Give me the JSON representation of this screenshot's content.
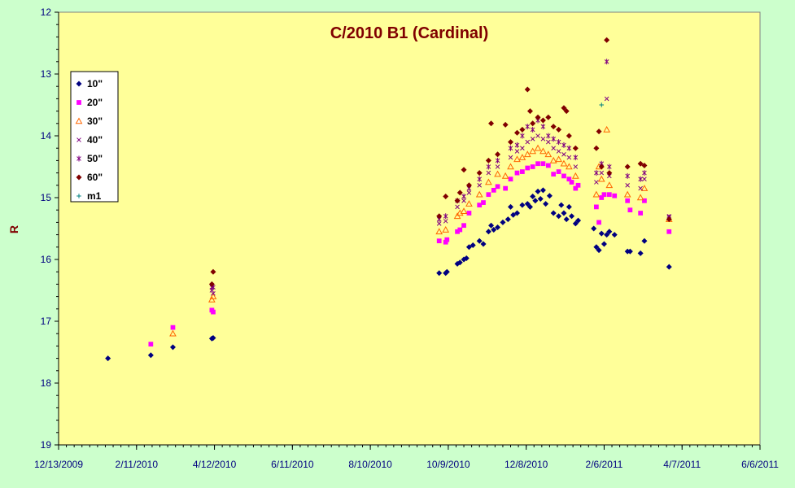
{
  "chart_data": {
    "type": "scatter",
    "title": "C/2010 B1 (Cardinal)",
    "xlabel": "",
    "ylabel": "R",
    "xlim": [
      "2009-12-13",
      "2011-06-06"
    ],
    "ylim": [
      12,
      19
    ],
    "y_inverted": true,
    "x_ticks": [
      "12/13/2009",
      "2/11/2010",
      "4/12/2010",
      "6/11/2010",
      "8/10/2010",
      "10/9/2010",
      "12/8/2010",
      "2/6/2011",
      "4/7/2011",
      "6/6/2011"
    ],
    "y_ticks": [
      12,
      13,
      14,
      15,
      16,
      17,
      18,
      19
    ],
    "grid": false,
    "legend_position": "left",
    "colors": {
      "plot_background": "#ffff99",
      "page_background": "#ccffcc",
      "title": "#800000",
      "axis_labels": "#000080"
    },
    "series": [
      {
        "name": "10\"",
        "marker": "diamond",
        "color": "#000080",
        "points": [
          [
            "2010-01-20",
            17.6
          ],
          [
            "2010-02-22",
            17.55
          ],
          [
            "2010-03-11",
            17.42
          ],
          [
            "2010-04-10",
            17.28
          ],
          [
            "2010-04-11",
            17.27
          ],
          [
            "2010-10-02",
            16.22
          ],
          [
            "2010-10-07",
            16.22
          ],
          [
            "2010-10-08",
            16.2
          ],
          [
            "2010-10-16",
            16.07
          ],
          [
            "2010-10-18",
            16.05
          ],
          [
            "2010-10-21",
            16.0
          ],
          [
            "2010-10-23",
            15.98
          ],
          [
            "2010-10-25",
            15.8
          ],
          [
            "2010-10-28",
            15.77
          ],
          [
            "2010-11-02",
            15.7
          ],
          [
            "2010-11-05",
            15.75
          ],
          [
            "2010-11-09",
            15.55
          ],
          [
            "2010-11-11",
            15.45
          ],
          [
            "2010-11-13",
            15.52
          ],
          [
            "2010-11-16",
            15.48
          ],
          [
            "2010-11-20",
            15.4
          ],
          [
            "2010-11-24",
            15.35
          ],
          [
            "2010-11-26",
            15.15
          ],
          [
            "2010-11-28",
            15.28
          ],
          [
            "2010-12-01",
            15.25
          ],
          [
            "2010-12-05",
            15.12
          ],
          [
            "2010-12-09",
            15.1
          ],
          [
            "2010-12-11",
            15.15
          ],
          [
            "2010-12-13",
            14.98
          ],
          [
            "2010-12-15",
            15.05
          ],
          [
            "2010-12-17",
            14.9
          ],
          [
            "2010-12-19",
            15.02
          ],
          [
            "2010-12-21",
            14.88
          ],
          [
            "2010-12-23",
            15.1
          ],
          [
            "2010-12-26",
            14.97
          ],
          [
            "2010-12-29",
            15.25
          ],
          [
            "2011-01-02",
            15.3
          ],
          [
            "2011-01-04",
            15.12
          ],
          [
            "2011-01-06",
            15.25
          ],
          [
            "2011-01-08",
            15.35
          ],
          [
            "2011-01-10",
            15.15
          ],
          [
            "2011-01-12",
            15.3
          ],
          [
            "2011-01-15",
            15.42
          ],
          [
            "2011-01-17",
            15.37
          ],
          [
            "2011-01-29",
            15.5
          ],
          [
            "2011-01-31",
            15.8
          ],
          [
            "2011-02-02",
            15.85
          ],
          [
            "2011-02-04",
            15.58
          ],
          [
            "2011-02-06",
            15.75
          ],
          [
            "2011-02-08",
            15.6
          ],
          [
            "2011-02-10",
            15.55
          ],
          [
            "2011-02-14",
            15.6
          ],
          [
            "2011-02-24",
            15.87
          ],
          [
            "2011-02-26",
            15.87
          ],
          [
            "2011-03-06",
            15.9
          ],
          [
            "2011-03-09",
            15.7
          ],
          [
            "2011-03-28",
            16.12
          ]
        ]
      },
      {
        "name": "20\"",
        "marker": "square",
        "color": "#ff00ff",
        "points": [
          [
            "2010-02-22",
            17.37
          ],
          [
            "2010-03-11",
            17.1
          ],
          [
            "2010-04-10",
            16.82
          ],
          [
            "2010-04-11",
            16.85
          ],
          [
            "2010-10-02",
            15.7
          ],
          [
            "2010-10-07",
            15.72
          ],
          [
            "2010-10-08",
            15.68
          ],
          [
            "2010-10-16",
            15.55
          ],
          [
            "2010-10-18",
            15.52
          ],
          [
            "2010-10-21",
            15.45
          ],
          [
            "2010-10-25",
            15.25
          ],
          [
            "2010-11-02",
            15.12
          ],
          [
            "2010-11-05",
            15.08
          ],
          [
            "2010-11-09",
            14.95
          ],
          [
            "2010-11-13",
            14.88
          ],
          [
            "2010-11-16",
            14.82
          ],
          [
            "2010-11-22",
            14.85
          ],
          [
            "2010-11-26",
            14.7
          ],
          [
            "2010-12-01",
            14.6
          ],
          [
            "2010-12-05",
            14.58
          ],
          [
            "2010-12-09",
            14.52
          ],
          [
            "2010-12-13",
            14.5
          ],
          [
            "2010-12-17",
            14.45
          ],
          [
            "2010-12-21",
            14.45
          ],
          [
            "2010-12-25",
            14.48
          ],
          [
            "2010-12-29",
            14.62
          ],
          [
            "2011-01-02",
            14.58
          ],
          [
            "2011-01-06",
            14.65
          ],
          [
            "2011-01-10",
            14.7
          ],
          [
            "2011-01-12",
            14.75
          ],
          [
            "2011-01-15",
            14.85
          ],
          [
            "2011-01-17",
            14.8
          ],
          [
            "2011-01-31",
            15.15
          ],
          [
            "2011-02-02",
            15.4
          ],
          [
            "2011-02-04",
            15.0
          ],
          [
            "2011-02-06",
            14.95
          ],
          [
            "2011-02-10",
            14.95
          ],
          [
            "2011-02-14",
            14.97
          ],
          [
            "2011-02-24",
            15.05
          ],
          [
            "2011-02-26",
            15.2
          ],
          [
            "2011-03-06",
            15.25
          ],
          [
            "2011-03-09",
            15.05
          ],
          [
            "2011-03-28",
            15.55
          ]
        ]
      },
      {
        "name": "30\"",
        "marker": "triangle",
        "color": "#ff6600",
        "points": [
          [
            "2010-03-11",
            17.2
          ],
          [
            "2010-04-10",
            16.65
          ],
          [
            "2010-04-11",
            16.6
          ],
          [
            "2010-10-02",
            15.55
          ],
          [
            "2010-10-07",
            15.52
          ],
          [
            "2010-10-16",
            15.3
          ],
          [
            "2010-10-18",
            15.25
          ],
          [
            "2010-10-21",
            15.22
          ],
          [
            "2010-10-25",
            15.1
          ],
          [
            "2010-11-02",
            14.95
          ],
          [
            "2010-11-09",
            14.75
          ],
          [
            "2010-11-16",
            14.62
          ],
          [
            "2010-11-22",
            14.65
          ],
          [
            "2010-11-26",
            14.5
          ],
          [
            "2010-12-01",
            14.38
          ],
          [
            "2010-12-05",
            14.35
          ],
          [
            "2010-12-09",
            14.3
          ],
          [
            "2010-12-13",
            14.25
          ],
          [
            "2010-12-17",
            14.2
          ],
          [
            "2010-12-21",
            14.25
          ],
          [
            "2010-12-25",
            14.3
          ],
          [
            "2010-12-29",
            14.4
          ],
          [
            "2011-01-02",
            14.38
          ],
          [
            "2011-01-06",
            14.45
          ],
          [
            "2011-01-10",
            14.5
          ],
          [
            "2011-01-15",
            14.65
          ],
          [
            "2011-01-31",
            14.95
          ],
          [
            "2011-02-02",
            14.5
          ],
          [
            "2011-02-04",
            14.7
          ],
          [
            "2011-02-08",
            13.9
          ],
          [
            "2011-02-10",
            14.8
          ],
          [
            "2011-02-24",
            14.95
          ],
          [
            "2011-03-06",
            15.0
          ],
          [
            "2011-03-09",
            14.85
          ],
          [
            "2011-03-28",
            15.35
          ]
        ]
      },
      {
        "name": "40\"",
        "marker": "x",
        "color": "#800080",
        "points": [
          [
            "2010-04-10",
            16.5
          ],
          [
            "2010-04-11",
            16.55
          ],
          [
            "2010-10-02",
            15.42
          ],
          [
            "2010-10-07",
            15.38
          ],
          [
            "2010-10-16",
            15.15
          ],
          [
            "2010-10-21",
            15.05
          ],
          [
            "2010-10-25",
            14.92
          ],
          [
            "2010-11-02",
            14.8
          ],
          [
            "2010-11-09",
            14.6
          ],
          [
            "2010-11-16",
            14.5
          ],
          [
            "2010-11-26",
            14.35
          ],
          [
            "2010-12-01",
            14.25
          ],
          [
            "2010-12-05",
            14.2
          ],
          [
            "2010-12-09",
            14.1
          ],
          [
            "2010-12-13",
            14.05
          ],
          [
            "2010-12-17",
            14.0
          ],
          [
            "2010-12-21",
            14.05
          ],
          [
            "2010-12-25",
            14.1
          ],
          [
            "2010-12-29",
            14.2
          ],
          [
            "2011-01-02",
            14.25
          ],
          [
            "2011-01-06",
            14.3
          ],
          [
            "2011-01-10",
            14.35
          ],
          [
            "2011-01-15",
            14.5
          ],
          [
            "2011-01-31",
            14.75
          ],
          [
            "2011-02-04",
            14.6
          ],
          [
            "2011-02-08",
            13.4
          ],
          [
            "2011-02-10",
            14.65
          ],
          [
            "2011-02-24",
            14.8
          ],
          [
            "2011-03-06",
            14.85
          ],
          [
            "2011-03-09",
            14.7
          ],
          [
            "2011-03-28",
            15.3
          ]
        ]
      },
      {
        "name": "50\"",
        "marker": "star",
        "color": "#800080",
        "points": [
          [
            "2010-04-10",
            16.45
          ],
          [
            "2010-04-11",
            16.45
          ],
          [
            "2010-10-02",
            15.35
          ],
          [
            "2010-10-07",
            15.3
          ],
          [
            "2010-10-16",
            15.05
          ],
          [
            "2010-10-21",
            14.98
          ],
          [
            "2010-10-25",
            14.85
          ],
          [
            "2010-11-02",
            14.7
          ],
          [
            "2010-11-09",
            14.5
          ],
          [
            "2010-11-16",
            14.4
          ],
          [
            "2010-11-26",
            14.2
          ],
          [
            "2010-12-01",
            14.15
          ],
          [
            "2010-12-05",
            14.0
          ],
          [
            "2010-12-09",
            13.85
          ],
          [
            "2010-12-13",
            13.9
          ],
          [
            "2010-12-17",
            13.75
          ],
          [
            "2010-12-21",
            13.85
          ],
          [
            "2010-12-25",
            14.0
          ],
          [
            "2010-12-29",
            14.05
          ],
          [
            "2011-01-02",
            14.1
          ],
          [
            "2011-01-06",
            14.15
          ],
          [
            "2011-01-10",
            14.2
          ],
          [
            "2011-01-15",
            14.35
          ],
          [
            "2011-01-31",
            14.6
          ],
          [
            "2011-02-04",
            14.45
          ],
          [
            "2011-02-08",
            12.8
          ],
          [
            "2011-02-10",
            14.5
          ],
          [
            "2011-02-24",
            14.65
          ],
          [
            "2011-03-06",
            14.7
          ],
          [
            "2011-03-09",
            14.6
          ],
          [
            "2011-03-28",
            15.32
          ]
        ]
      },
      {
        "name": "60\"",
        "marker": "diamond",
        "color": "#800000",
        "points": [
          [
            "2010-04-10",
            16.4
          ],
          [
            "2010-04-11",
            16.2
          ],
          [
            "2010-10-02",
            15.3
          ],
          [
            "2010-10-07",
            14.98
          ],
          [
            "2010-10-16",
            15.05
          ],
          [
            "2010-10-18",
            14.92
          ],
          [
            "2010-10-21",
            14.55
          ],
          [
            "2010-10-25",
            14.8
          ],
          [
            "2010-11-02",
            14.6
          ],
          [
            "2010-11-09",
            14.4
          ],
          [
            "2010-11-11",
            13.8
          ],
          [
            "2010-11-16",
            14.3
          ],
          [
            "2010-11-22",
            13.82
          ],
          [
            "2010-11-26",
            14.1
          ],
          [
            "2010-12-01",
            13.95
          ],
          [
            "2010-12-05",
            13.9
          ],
          [
            "2010-12-09",
            13.25
          ],
          [
            "2010-12-11",
            13.6
          ],
          [
            "2010-12-13",
            13.8
          ],
          [
            "2010-12-17",
            13.7
          ],
          [
            "2010-12-21",
            13.75
          ],
          [
            "2010-12-25",
            13.7
          ],
          [
            "2010-12-29",
            13.85
          ],
          [
            "2011-01-02",
            13.9
          ],
          [
            "2011-01-06",
            13.55
          ],
          [
            "2011-01-08",
            13.6
          ],
          [
            "2011-01-10",
            14.0
          ],
          [
            "2011-01-15",
            14.2
          ],
          [
            "2011-01-31",
            14.2
          ],
          [
            "2011-02-02",
            13.93
          ],
          [
            "2011-02-04",
            14.5
          ],
          [
            "2011-02-08",
            12.45
          ],
          [
            "2011-02-10",
            14.6
          ],
          [
            "2011-02-24",
            14.5
          ],
          [
            "2011-03-06",
            14.45
          ],
          [
            "2011-03-09",
            14.48
          ],
          [
            "2011-03-28",
            15.35
          ]
        ]
      },
      {
        "name": "m1",
        "marker": "plus",
        "color": "#008080",
        "points": [
          [
            "2011-02-04",
            13.5
          ]
        ]
      }
    ]
  }
}
